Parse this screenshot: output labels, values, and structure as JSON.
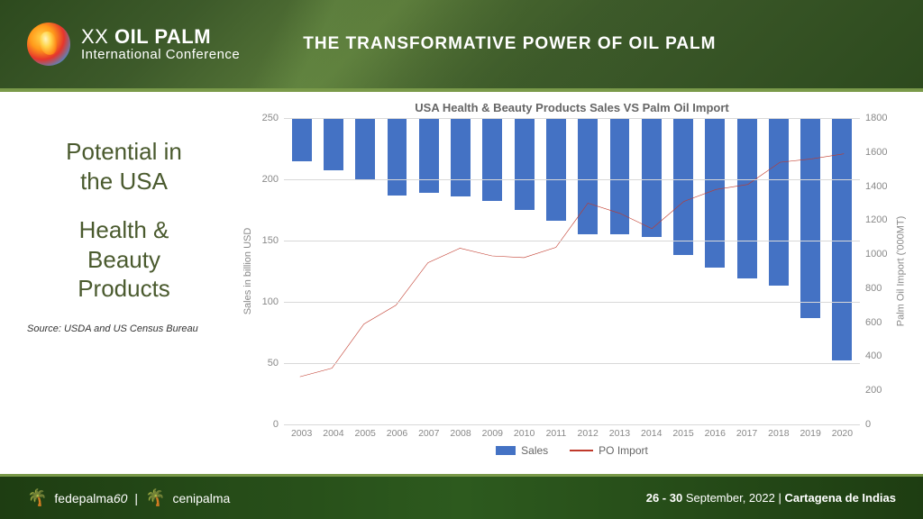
{
  "header": {
    "logo_line1_prefix": "XX ",
    "logo_line1_bold": "OIL PALM",
    "logo_line2": "International Conference",
    "title": "THE TRANSFORMATIVE POWER OF OIL PALM"
  },
  "sidebar": {
    "title_line1": "Potential in",
    "title_line2": "the USA",
    "title_line3": "Health &",
    "title_line4": "Beauty",
    "title_line5": "Products",
    "source": "Source: USDA and US Census Bureau"
  },
  "chart": {
    "type": "bar+line",
    "title": "USA Health & Beauty Products Sales VS Palm Oil Import",
    "categories": [
      "2003",
      "2004",
      "2005",
      "2006",
      "2007",
      "2008",
      "2009",
      "2010",
      "2011",
      "2012",
      "2013",
      "2014",
      "2015",
      "2016",
      "2017",
      "2018",
      "2019",
      "2020"
    ],
    "bar_series": {
      "label": "Sales",
      "color": "#4472c4",
      "values": [
        35,
        43,
        50,
        63,
        61,
        64,
        68,
        75,
        84,
        95,
        95,
        97,
        112,
        122,
        131,
        137,
        163,
        198
      ],
      "ylim": [
        0,
        250
      ],
      "ytick_step": 50,
      "axis_label": "Sales in billion USD"
    },
    "line_series": {
      "label": "PO Import",
      "color": "#c0392b",
      "values": [
        280,
        330,
        590,
        700,
        950,
        1035,
        990,
        980,
        1040,
        1300,
        1240,
        1150,
        1310,
        1380,
        1410,
        1540,
        1560,
        1590
      ],
      "ylim": [
        0,
        1800
      ],
      "ytick_step": 200,
      "axis_label": "Palm Oil Import ('000MT)",
      "line_width": 2
    },
    "background_color": "#ffffff",
    "grid_color": "#d8d8d8",
    "tick_fontsize": 11,
    "title_fontsize": 13,
    "bar_width": 0.62
  },
  "footer": {
    "left1": "fedepalma",
    "left1_suffix": "60",
    "left2": "cenipalma",
    "dates": "26 - 30",
    "month": " September, 2022 | ",
    "location": "Cartagena de Indias"
  }
}
